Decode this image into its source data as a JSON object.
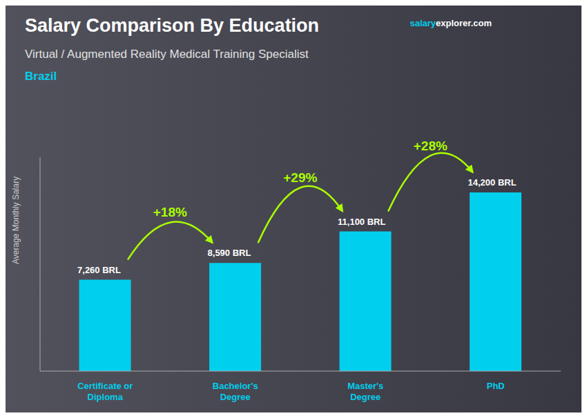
{
  "chart_data": {
    "type": "bar",
    "title": "Salary Comparison By Education",
    "subtitle": "Virtual / Augmented Reality Medical Training Specialist",
    "country": "Brazil",
    "source": [
      {
        "text": "salary",
        "color": "#00cfef"
      },
      {
        "text": "explorer.com",
        "color": "#ffffff"
      }
    ],
    "y_label": "Average Monthly Salary",
    "categories": [
      "Certificate or\nDiploma",
      "Bachelor's\nDegree",
      "Master's\nDegree",
      "PhD"
    ],
    "values": [
      7260,
      8590,
      11100,
      14200
    ],
    "value_labels": [
      "7,260 BRL",
      "8,590 BRL",
      "11,100 BRL",
      "14,200 BRL"
    ],
    "data_labels": true,
    "color": "#00d0ee",
    "annotations": [
      {
        "text": "+18%",
        "color": "#aaff00"
      },
      {
        "text": "+29%",
        "color": "#aaff00"
      },
      {
        "text": "+28%",
        "color": "#aaff00"
      }
    ],
    "ylim": [
      0,
      17000
    ],
    "yticks": [],
    "tick_labels": "x",
    "grid": false
  }
}
